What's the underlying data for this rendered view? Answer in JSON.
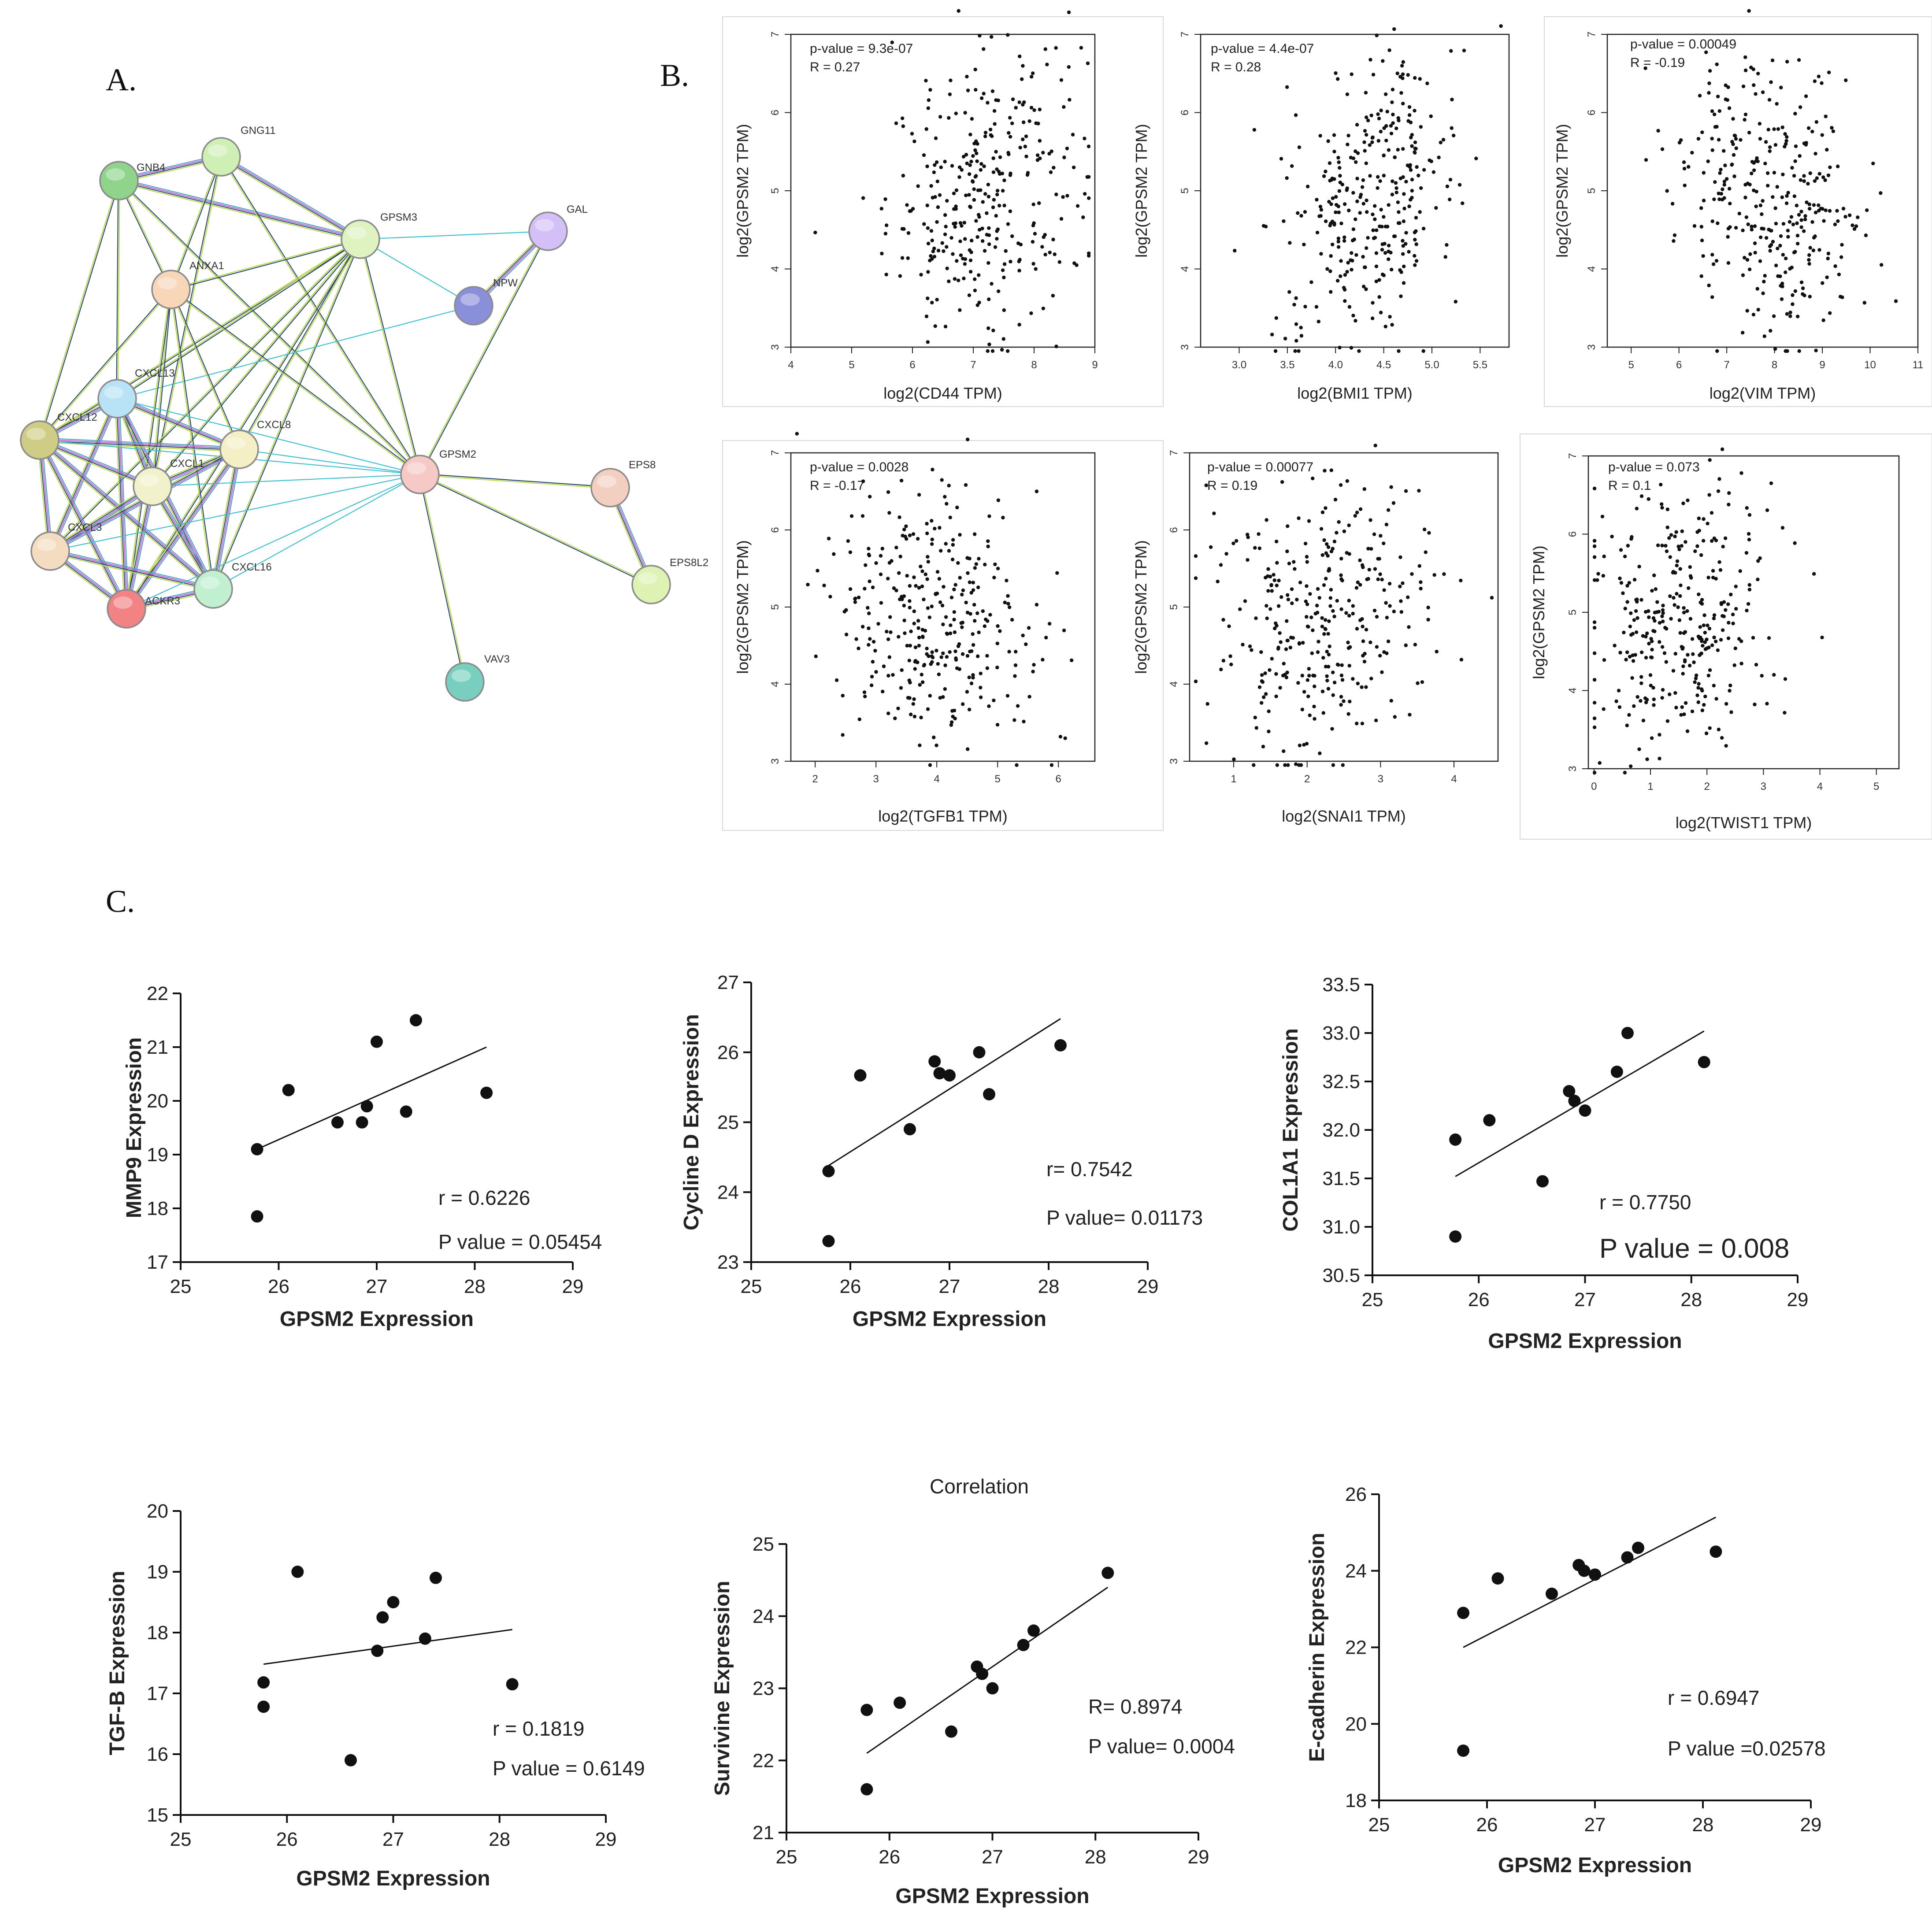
{
  "panel_labels": {
    "a": "A.",
    "b": "B.",
    "c": "C."
  },
  "network": {
    "nodes": [
      {
        "id": "GNB4",
        "label": "GNB4",
        "color": "#8fd48a"
      },
      {
        "id": "GNG11",
        "label": "GNG11",
        "color": "#cff0b5"
      },
      {
        "id": "GPSM3",
        "label": "GPSM3",
        "color": "#dff3c0"
      },
      {
        "id": "GAL",
        "label": "GAL",
        "color": "#d4c0f6"
      },
      {
        "id": "NPW",
        "label": "NPW",
        "color": "#8a8fd9"
      },
      {
        "id": "ANXA1",
        "label": "ANXA1",
        "color": "#f8d6b8"
      },
      {
        "id": "CXCL13",
        "label": "CXCL13",
        "color": "#b8e2f6"
      },
      {
        "id": "CXCL12",
        "label": "CXCL12",
        "color": "#cfcd85"
      },
      {
        "id": "CXCL8",
        "label": "CXCL8",
        "color": "#f5efc5"
      },
      {
        "id": "CXCL1",
        "label": "CXCL1",
        "color": "#f1f2cb"
      },
      {
        "id": "GPSM2",
        "label": "GPSM2",
        "color": "#f6c8c6"
      },
      {
        "id": "EPS8",
        "label": "EPS8",
        "color": "#f3cfc2"
      },
      {
        "id": "EPS8L2",
        "label": "EPS8L2",
        "color": "#def3b3"
      },
      {
        "id": "CXCL3",
        "label": "CXCL3",
        "color": "#f4dcc0"
      },
      {
        "id": "ACKR3",
        "label": "ACKR3",
        "color": "#f28284"
      },
      {
        "id": "CXCL16",
        "label": "CXCL16",
        "color": "#c0f0cf"
      },
      {
        "id": "VAV3",
        "label": "VAV3",
        "color": "#79cfbf"
      }
    ]
  },
  "chart_data": [
    {
      "type": "scatter",
      "id": "b1",
      "xlabel": "log2(CD44 TPM)",
      "ylabel": "log2(GPSM2 TPM)",
      "annotations": [
        "p-value = 9.3e-07",
        "R = 0.27"
      ],
      "xlim": [
        4,
        9
      ],
      "ylim": [
        3,
        7
      ],
      "xticks": [
        "4",
        "5",
        "6",
        "7",
        "8",
        "9"
      ],
      "yticks": [
        "3",
        "4",
        "5",
        "6",
        "7"
      ],
      "n_points": 330,
      "x_center": 7.2,
      "x_sd": 0.8,
      "y_center": 5.0,
      "y_sd": 0.9,
      "r": 0.27
    },
    {
      "type": "scatter",
      "id": "b2",
      "xlabel": "log2(BMI1 TPM)",
      "ylabel": "log2(GPSM2 TPM)",
      "annotations": [
        "p-value = 4.4e-07",
        "R = 0.28"
      ],
      "xlim": [
        2.6,
        5.8
      ],
      "ylim": [
        3,
        7
      ],
      "xticks": [
        "3.0",
        "3.5",
        "4.0",
        "4.5",
        "5.0",
        "5.5"
      ],
      "yticks": [
        "3",
        "4",
        "5",
        "6",
        "7"
      ],
      "n_points": 330,
      "x_center": 4.35,
      "x_sd": 0.45,
      "y_center": 4.9,
      "y_sd": 0.9,
      "r": 0.28
    },
    {
      "type": "scatter",
      "id": "b3",
      "xlabel": "log2(VIM TPM)",
      "ylabel": "log2(GPSM2 TPM)",
      "annotations": [
        "p-value = 0.00049",
        "R = -0.19"
      ],
      "xlim": [
        4.5,
        11
      ],
      "ylim": [
        3,
        7
      ],
      "xticks": [
        "5",
        "6",
        "7",
        "8",
        "9",
        "10",
        "11"
      ],
      "yticks": [
        "3",
        "4",
        "5",
        "6",
        "7"
      ],
      "n_points": 330,
      "x_center": 8.0,
      "x_sd": 1.0,
      "y_center": 4.9,
      "y_sd": 0.9,
      "r": -0.19
    },
    {
      "type": "scatter",
      "id": "b4",
      "xlabel": "log2(TGFB1 TPM)",
      "ylabel": "log2(GPSM2 TPM)",
      "annotations": [
        "p-value = 0.0028",
        "R = -0.17"
      ],
      "xlim": [
        1.6,
        6.6
      ],
      "ylim": [
        3,
        7
      ],
      "xticks": [
        "2",
        "3",
        "4",
        "5",
        "6"
      ],
      "yticks": [
        "3",
        "4",
        "5",
        "6",
        "7"
      ],
      "n_points": 330,
      "x_center": 4.0,
      "x_sd": 0.9,
      "y_center": 4.9,
      "y_sd": 0.9,
      "r": -0.17
    },
    {
      "type": "scatter",
      "id": "b5",
      "xlabel": "log2(SNAI1 TPM)",
      "ylabel": "log2(GPSM2 TPM)",
      "annotations": [
        "p-value = 0.00077",
        "R = 0.19"
      ],
      "xlim": [
        0.4,
        4.6
      ],
      "ylim": [
        3,
        7
      ],
      "xticks": [
        "1",
        "2",
        "3",
        "4"
      ],
      "yticks": [
        "3",
        "4",
        "5",
        "6",
        "7"
      ],
      "n_points": 330,
      "x_center": 2.2,
      "x_sd": 0.7,
      "y_center": 4.9,
      "y_sd": 0.9,
      "r": 0.19
    },
    {
      "type": "scatter",
      "id": "b6",
      "xlabel": "log2(TWIST1 TPM)",
      "ylabel": "log2(GPSM2 TPM)",
      "annotations": [
        "p-value = 0.073",
        "R = 0.1"
      ],
      "xlim": [
        -0.1,
        5.4
      ],
      "ylim": [
        3,
        7
      ],
      "xticks": [
        "0",
        "1",
        "2",
        "3",
        "4",
        "5"
      ],
      "yticks": [
        "3",
        "4",
        "5",
        "6",
        "7"
      ],
      "n_points": 330,
      "x_center": 1.5,
      "x_sd": 0.8,
      "y_center": 4.9,
      "y_sd": 0.9,
      "r": 0.1
    },
    {
      "type": "scatter",
      "id": "c1",
      "xlabel": "GPSM2 Expression",
      "ylabel": "MMP9 Expression",
      "x": [
        25.78,
        25.78,
        26.1,
        26.6,
        26.85,
        26.9,
        27.0,
        27.3,
        27.4,
        28.12
      ],
      "y": [
        19.1,
        17.85,
        20.2,
        19.6,
        19.6,
        19.9,
        21.1,
        19.8,
        21.5,
        20.15
      ],
      "fit": {
        "x": [
          25.78,
          28.12
        ],
        "y": [
          19.1,
          21.0
        ]
      },
      "xlim": [
        25,
        29
      ],
      "ylim": [
        17,
        22
      ],
      "xticks": [
        "25",
        "26",
        "27",
        "28",
        "29"
      ],
      "yticks": [
        "17",
        "18",
        "19",
        "20",
        "21",
        "22"
      ],
      "annotations": [
        "r = 0.6226",
        "P value = 0.05454"
      ]
    },
    {
      "type": "scatter",
      "id": "c2",
      "xlabel": "GPSM2 Expression",
      "ylabel": "Cycline D Expression",
      "x": [
        25.78,
        25.78,
        26.1,
        26.6,
        26.85,
        26.9,
        27.0,
        27.3,
        27.4,
        28.12
      ],
      "y": [
        24.3,
        23.3,
        25.67,
        24.9,
        25.87,
        25.7,
        25.67,
        26.0,
        25.4,
        26.1
      ],
      "fit": {
        "x": [
          25.78,
          28.12
        ],
        "y": [
          24.38,
          26.48
        ]
      },
      "xlim": [
        25,
        29
      ],
      "ylim": [
        23,
        27
      ],
      "xticks": [
        "25",
        "26",
        "27",
        "28",
        "29"
      ],
      "yticks": [
        "23",
        "24",
        "25",
        "26",
        "27"
      ],
      "annotations": [
        "r= 0.7542",
        "P value= 0.01173"
      ]
    },
    {
      "type": "scatter",
      "id": "c3",
      "xlabel": "GPSM2 Expression",
      "ylabel": "COL1A1 Expression",
      "x": [
        25.78,
        25.78,
        26.1,
        26.6,
        26.85,
        26.9,
        27.0,
        27.3,
        27.4,
        28.12
      ],
      "y": [
        31.9,
        30.9,
        32.1,
        31.47,
        32.4,
        32.3,
        32.2,
        32.6,
        33.0,
        32.7
      ],
      "fit": {
        "x": [
          25.78,
          28.12
        ],
        "y": [
          31.52,
          33.02
        ]
      },
      "xlim": [
        25,
        29
      ],
      "ylim": [
        30.5,
        33.5
      ],
      "xticks": [
        "25",
        "26",
        "27",
        "28",
        "29"
      ],
      "yticks": [
        "30.5",
        "31.0",
        "31.5",
        "32.0",
        "32.5",
        "33.0",
        "33.5"
      ],
      "annotations": [
        "r = 0.7750",
        "P value = 0.008"
      ]
    },
    {
      "type": "scatter",
      "id": "c4",
      "xlabel": "GPSM2 Expression",
      "ylabel": "TGF-B Expression",
      "x": [
        25.78,
        25.78,
        26.1,
        26.6,
        26.85,
        26.9,
        27.0,
        27.3,
        27.4,
        28.12
      ],
      "y": [
        17.18,
        16.78,
        19.0,
        15.9,
        17.7,
        18.25,
        18.5,
        17.9,
        18.9,
        17.15
      ],
      "fit": {
        "x": [
          25.78,
          28.12
        ],
        "y": [
          17.48,
          18.05
        ]
      },
      "xlim": [
        25,
        29
      ],
      "ylim": [
        15,
        20
      ],
      "xticks": [
        "25",
        "26",
        "27",
        "28",
        "29"
      ],
      "yticks": [
        "15",
        "16",
        "17",
        "18",
        "19",
        "20"
      ],
      "annotations": [
        "r = 0.1819",
        "P value = 0.6149"
      ]
    },
    {
      "type": "scatter",
      "id": "c5",
      "xlabel": "GPSM2 Expression",
      "ylabel": "Survivine Expression",
      "title": "Correlation",
      "x": [
        25.78,
        25.78,
        26.1,
        26.6,
        26.85,
        26.9,
        27.0,
        27.3,
        27.4,
        28.12
      ],
      "y": [
        22.7,
        21.6,
        22.8,
        22.4,
        23.3,
        23.2,
        23.0,
        23.6,
        23.8,
        24.6
      ],
      "fit": {
        "x": [
          25.78,
          28.12
        ],
        "y": [
          22.1,
          24.4
        ]
      },
      "xlim": [
        25,
        29
      ],
      "ylim": [
        21,
        25
      ],
      "xticks": [
        "25",
        "26",
        "27",
        "28",
        "29"
      ],
      "yticks": [
        "21",
        "22",
        "23",
        "24",
        "25"
      ],
      "annotations": [
        "R= 0.8974",
        "P value= 0.0004"
      ]
    },
    {
      "type": "scatter",
      "id": "c6",
      "xlabel": "GPSM2 Expression",
      "ylabel": "E-cadherin Expression",
      "x": [
        25.78,
        25.78,
        26.1,
        26.6,
        26.85,
        26.9,
        27.0,
        27.3,
        27.4,
        28.12
      ],
      "y": [
        22.9,
        19.3,
        23.8,
        23.4,
        24.15,
        24.0,
        23.9,
        24.35,
        24.6,
        24.5
      ],
      "fit": {
        "x": [
          25.78,
          28.12
        ],
        "y": [
          22.0,
          25.4
        ]
      },
      "xlim": [
        25,
        29
      ],
      "ylim": [
        18,
        26
      ],
      "xticks": [
        "25",
        "26",
        "27",
        "28",
        "29"
      ],
      "yticks": [
        "18",
        "20",
        "22",
        "24",
        "26"
      ],
      "annotations": [
        "r = 0.6947",
        "P value =0.02578"
      ]
    }
  ]
}
